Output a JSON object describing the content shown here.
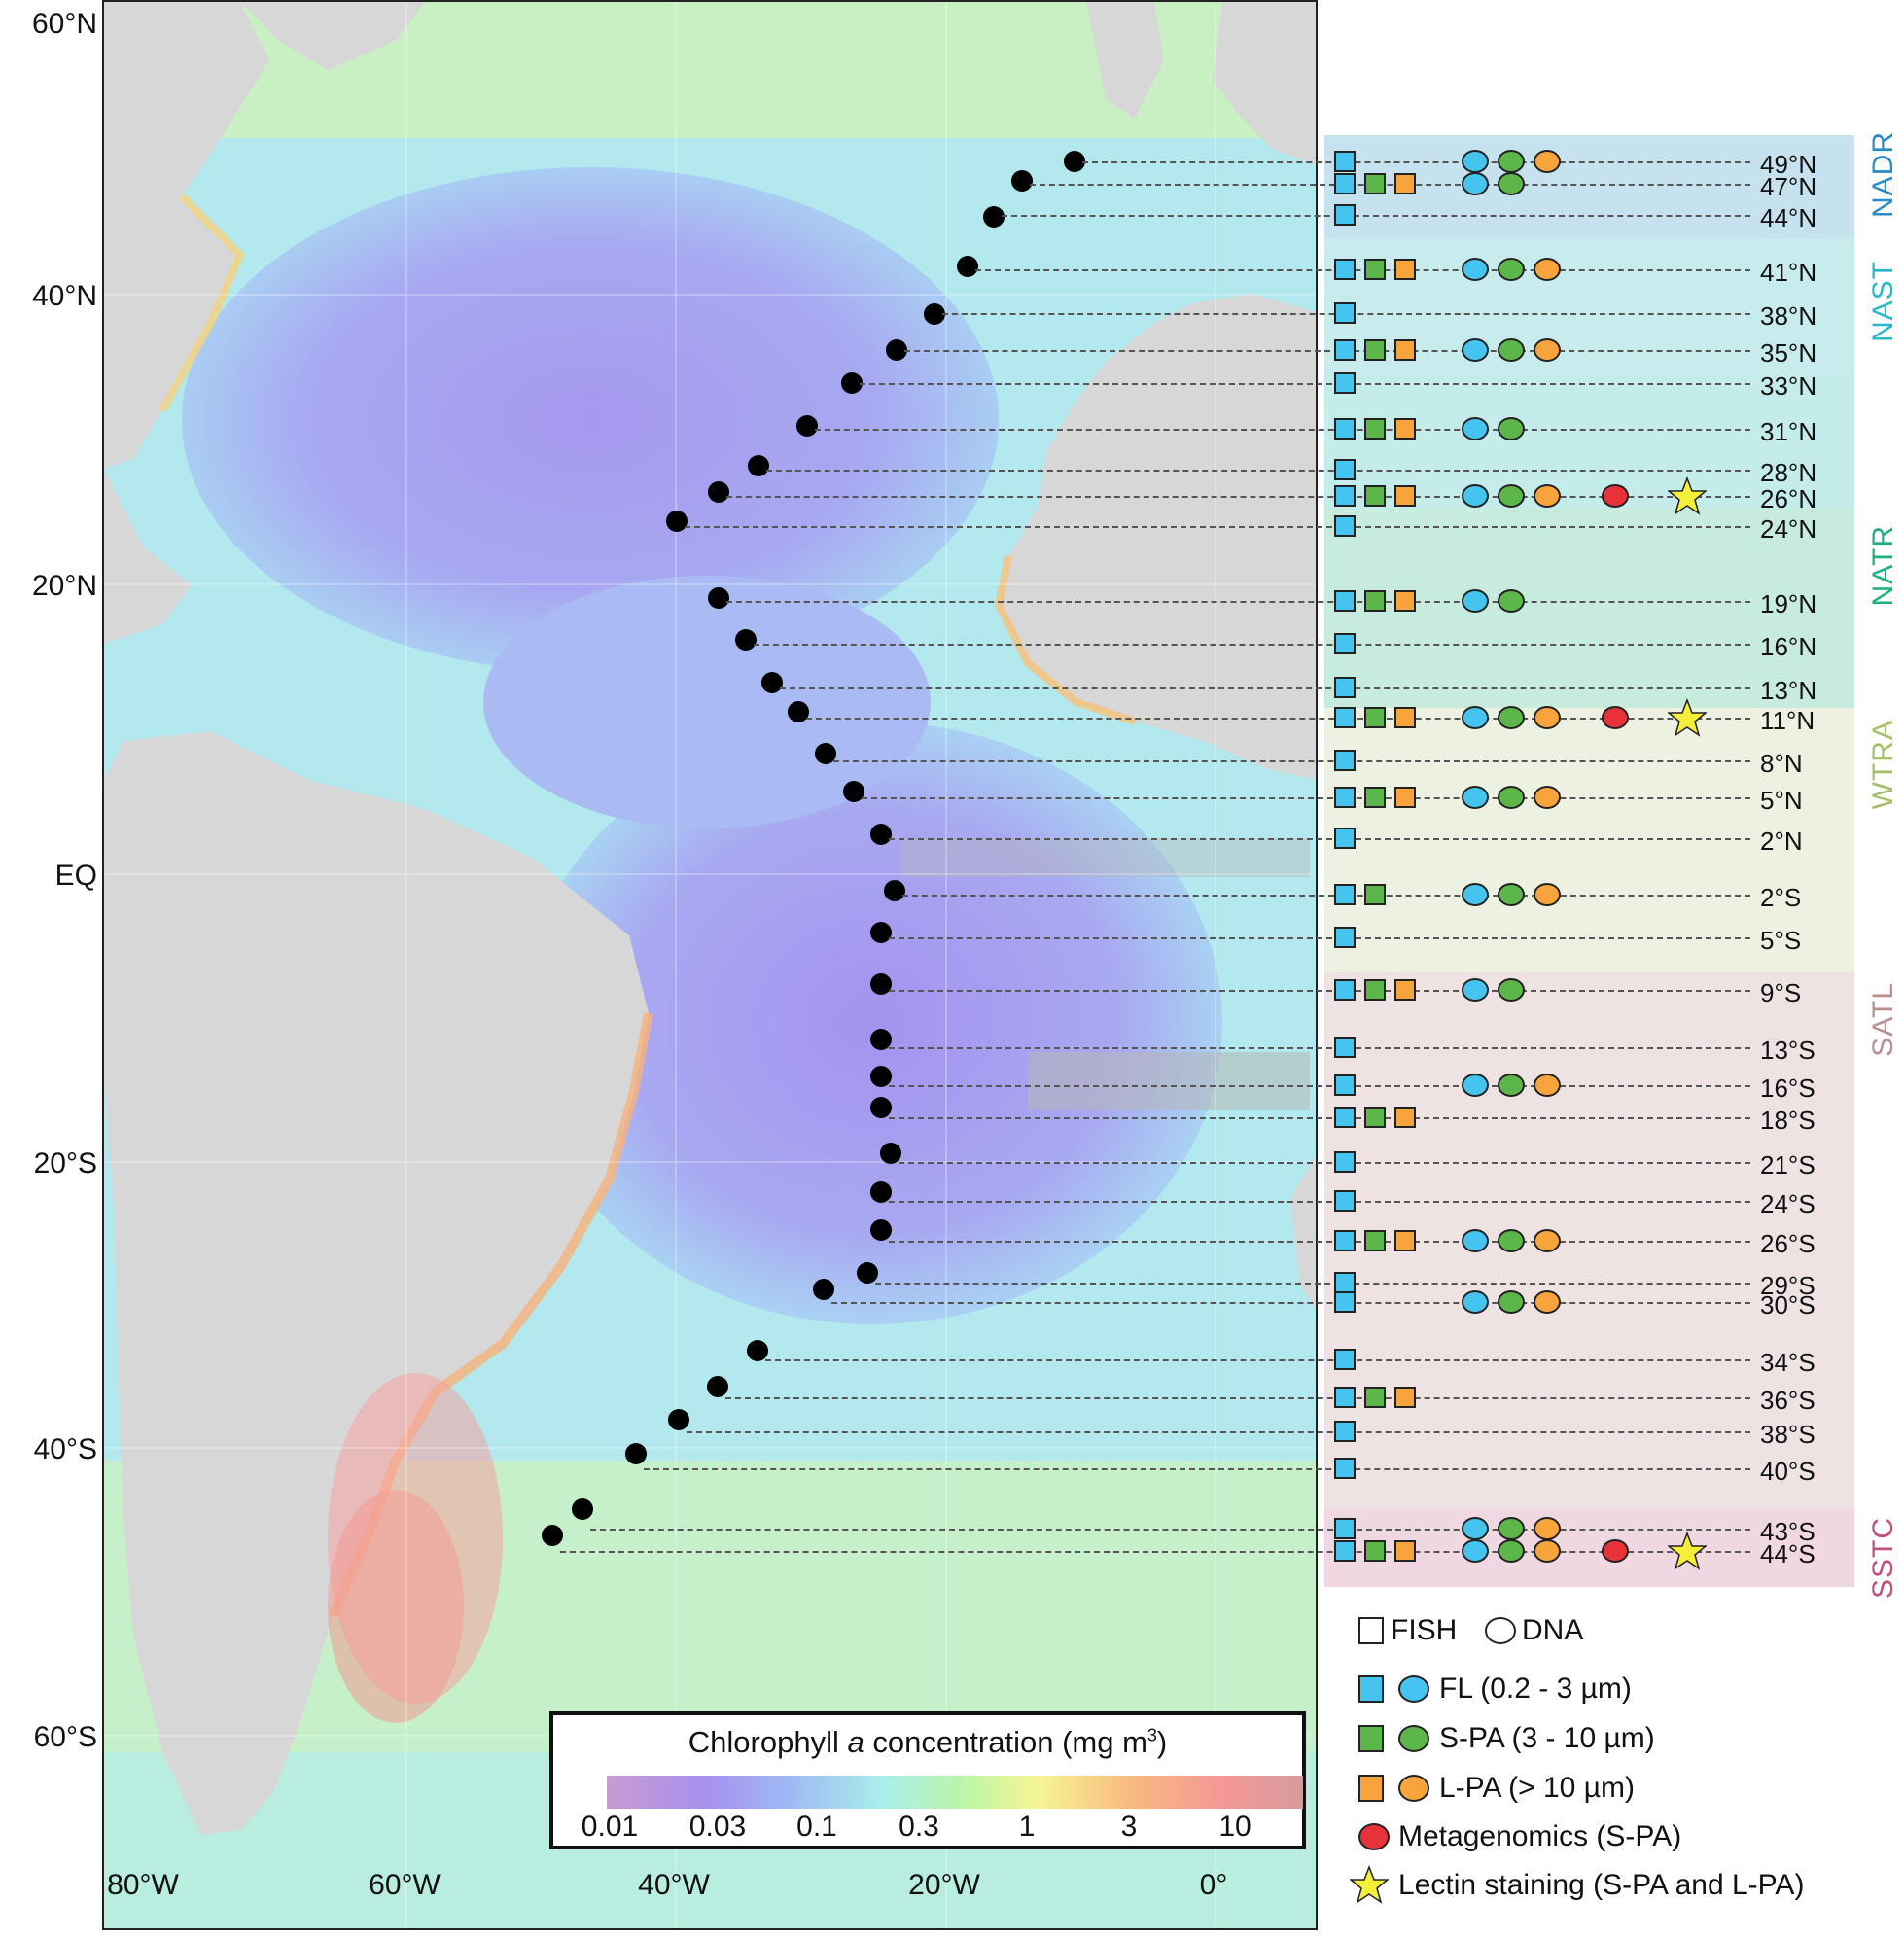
{
  "map": {
    "lat_labels": [
      "60°N",
      "40°N",
      "20°N",
      "EQ",
      "20°S",
      "40°S",
      "60°S"
    ],
    "lon_labels": [
      "80°W",
      "60°W",
      "40°W",
      "20°W",
      "0°"
    ],
    "colorbar": {
      "title_prefix": "Chlorophyll ",
      "title_italic": "a",
      "title_suffix": " concentration (mg m",
      "title_sup": "3",
      "title_end": ")",
      "ticks": [
        "0.01",
        "0.03",
        "0.1",
        "0.3",
        "1",
        "3",
        "10"
      ]
    }
  },
  "provinces": [
    {
      "name": "NADR",
      "color": "#2a8bc4"
    },
    {
      "name": "NAST",
      "color": "#29b7c9"
    },
    {
      "name": "NATR",
      "color": "#1db07c"
    },
    {
      "name": "WTRA",
      "color": "#a6be6a"
    },
    {
      "name": "SATL",
      "color": "#b88e8e"
    },
    {
      "name": "SSTC",
      "color": "#c2507e"
    }
  ],
  "stations": [
    {
      "lat": "49°N",
      "fish": [
        "FL"
      ],
      "dna": [
        "FL",
        "S-PA",
        "L-PA"
      ],
      "meta": false,
      "lectin": false
    },
    {
      "lat": "47°N",
      "fish": [
        "FL",
        "S-PA",
        "L-PA"
      ],
      "dna": [
        "FL",
        "S-PA"
      ],
      "meta": false,
      "lectin": false
    },
    {
      "lat": "44°N",
      "fish": [
        "FL"
      ],
      "dna": [],
      "meta": false,
      "lectin": false
    },
    {
      "lat": "41°N",
      "fish": [
        "FL",
        "S-PA",
        "L-PA"
      ],
      "dna": [
        "FL",
        "S-PA",
        "L-PA"
      ],
      "meta": false,
      "lectin": false
    },
    {
      "lat": "38°N",
      "fish": [
        "FL"
      ],
      "dna": [],
      "meta": false,
      "lectin": false
    },
    {
      "lat": "35°N",
      "fish": [
        "FL",
        "S-PA",
        "L-PA"
      ],
      "dna": [
        "FL",
        "S-PA",
        "L-PA"
      ],
      "meta": false,
      "lectin": false
    },
    {
      "lat": "33°N",
      "fish": [
        "FL"
      ],
      "dna": [],
      "meta": false,
      "lectin": false
    },
    {
      "lat": "31°N",
      "fish": [
        "FL",
        "S-PA",
        "L-PA"
      ],
      "dna": [
        "FL",
        "S-PA"
      ],
      "meta": false,
      "lectin": false
    },
    {
      "lat": "28°N",
      "fish": [
        "FL"
      ],
      "dna": [],
      "meta": false,
      "lectin": false
    },
    {
      "lat": "26°N",
      "fish": [
        "FL",
        "S-PA",
        "L-PA"
      ],
      "dna": [
        "FL",
        "S-PA",
        "L-PA"
      ],
      "meta": true,
      "lectin": true
    },
    {
      "lat": "24°N",
      "fish": [
        "FL"
      ],
      "dna": [],
      "meta": false,
      "lectin": false
    },
    {
      "lat": "19°N",
      "fish": [
        "FL",
        "S-PA",
        "L-PA"
      ],
      "dna": [
        "FL",
        "S-PA"
      ],
      "meta": false,
      "lectin": false
    },
    {
      "lat": "16°N",
      "fish": [
        "FL"
      ],
      "dna": [],
      "meta": false,
      "lectin": false
    },
    {
      "lat": "13°N",
      "fish": [
        "FL"
      ],
      "dna": [],
      "meta": false,
      "lectin": false
    },
    {
      "lat": "11°N",
      "fish": [
        "FL",
        "S-PA",
        "L-PA"
      ],
      "dna": [
        "FL",
        "S-PA",
        "L-PA"
      ],
      "meta": true,
      "lectin": true
    },
    {
      "lat": "8°N",
      "fish": [
        "FL"
      ],
      "dna": [],
      "meta": false,
      "lectin": false
    },
    {
      "lat": "5°N",
      "fish": [
        "FL",
        "S-PA",
        "L-PA"
      ],
      "dna": [
        "FL",
        "S-PA",
        "L-PA"
      ],
      "meta": false,
      "lectin": false
    },
    {
      "lat": "2°N",
      "fish": [
        "FL"
      ],
      "dna": [],
      "meta": false,
      "lectin": false
    },
    {
      "lat": "2°S",
      "fish": [
        "FL",
        "S-PA"
      ],
      "dna": [
        "FL",
        "S-PA",
        "L-PA"
      ],
      "meta": false,
      "lectin": false
    },
    {
      "lat": "5°S",
      "fish": [
        "FL"
      ],
      "dna": [],
      "meta": false,
      "lectin": false
    },
    {
      "lat": "9°S",
      "fish": [
        "FL",
        "S-PA",
        "L-PA"
      ],
      "dna": [
        "FL",
        "S-PA"
      ],
      "meta": false,
      "lectin": false
    },
    {
      "lat": "13°S",
      "fish": [
        "FL"
      ],
      "dna": [],
      "meta": false,
      "lectin": false
    },
    {
      "lat": "16°S",
      "fish": [
        "FL"
      ],
      "dna": [
        "FL",
        "S-PA",
        "L-PA"
      ],
      "meta": false,
      "lectin": false
    },
    {
      "lat": "18°S",
      "fish": [
        "FL",
        "S-PA",
        "L-PA"
      ],
      "dna": [],
      "meta": false,
      "lectin": false
    },
    {
      "lat": "21°S",
      "fish": [
        "FL"
      ],
      "dna": [],
      "meta": false,
      "lectin": false
    },
    {
      "lat": "24°S",
      "fish": [
        "FL"
      ],
      "dna": [],
      "meta": false,
      "lectin": false
    },
    {
      "lat": "26°S",
      "fish": [
        "FL",
        "S-PA",
        "L-PA"
      ],
      "dna": [
        "FL",
        "S-PA",
        "L-PA"
      ],
      "meta": false,
      "lectin": false
    },
    {
      "lat": "29°S",
      "fish": [
        "FL"
      ],
      "dna": [],
      "meta": false,
      "lectin": false
    },
    {
      "lat": "30°S",
      "fish": [
        "FL"
      ],
      "dna": [
        "FL",
        "S-PA",
        "L-PA"
      ],
      "meta": false,
      "lectin": false
    },
    {
      "lat": "34°S",
      "fish": [
        "FL"
      ],
      "dna": [],
      "meta": false,
      "lectin": false
    },
    {
      "lat": "36°S",
      "fish": [
        "FL",
        "S-PA",
        "L-PA"
      ],
      "dna": [],
      "meta": false,
      "lectin": false
    },
    {
      "lat": "38°S",
      "fish": [
        "FL"
      ],
      "dna": [],
      "meta": false,
      "lectin": false
    },
    {
      "lat": "40°S",
      "fish": [
        "FL"
      ],
      "dna": [],
      "meta": false,
      "lectin": false
    },
    {
      "lat": "43°S",
      "fish": [
        "FL"
      ],
      "dna": [
        "FL",
        "S-PA",
        "L-PA"
      ],
      "meta": false,
      "lectin": false
    },
    {
      "lat": "44°S",
      "fish": [
        "FL",
        "S-PA",
        "L-PA"
      ],
      "dna": [
        "FL",
        "S-PA",
        "L-PA"
      ],
      "meta": true,
      "lectin": true
    }
  ],
  "legend": {
    "fish": "FISH",
    "dna": "DNA",
    "fl": "FL (0.2 - 3 µm)",
    "spa": "S-PA (3 - 10 µm)",
    "lpa": "L-PA (> 10 µm)",
    "meta": "Metagenomics (S-PA)",
    "lectin": "Lectin staining (S-PA and L-PA)"
  },
  "colors": {
    "FL": "#44c4ee",
    "S-PA": "#5db64a",
    "L-PA": "#f7a43c",
    "meta": "#e8323a",
    "star": "#f5ef3a",
    "land": "#d7d7d7"
  }
}
